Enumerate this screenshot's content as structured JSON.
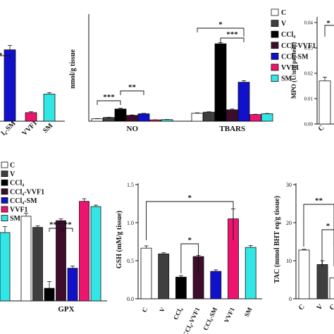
{
  "colors": {
    "C": "#ffffff",
    "V": "#3f3f3f",
    "CCl4": "#000000",
    "CCl4-VVF1": "#3d0d2b",
    "CCl4-SM": "#1111cc",
    "VVF1": "#ef1370",
    "SM": "#33e6e6"
  },
  "chart_data": [
    {
      "id": "p1",
      "type": "bar",
      "partial": true,
      "xlabel": "",
      "ylabel": "",
      "x_tick_labels": [
        "l₄-SM",
        "VVF1",
        "SM"
      ],
      "bars": [
        {
          "group": "CCl4-SM",
          "value": 1000,
          "error": 60
        },
        {
          "group": "VVF1",
          "value": 120,
          "error": 12
        },
        {
          "group": "SM",
          "value": 380,
          "error": 20
        }
      ],
      "ylim": [
        0,
        1500
      ],
      "annotations": [
        "*"
      ]
    },
    {
      "id": "p2",
      "type": "bar",
      "title": "",
      "ylabel": "nmol/g tissue",
      "ylim": [
        0,
        1700
      ],
      "categories": [
        "NO",
        "TBARS"
      ],
      "series": [
        {
          "name": "C",
          "values": [
            45,
            150
          ],
          "errors": [
            4,
            8
          ]
        },
        {
          "name": "V",
          "values": [
            70,
            170
          ],
          "errors": [
            5,
            8
          ]
        },
        {
          "name": "CCl₄",
          "values": [
            230,
            1460
          ],
          "errors": [
            14,
            22
          ]
        },
        {
          "name": "CCl₄-VVF1",
          "values": [
            110,
            215
          ],
          "errors": [
            8,
            14
          ]
        },
        {
          "name": "CCl₄-SM",
          "values": [
            140,
            735
          ],
          "errors": [
            8,
            28
          ]
        },
        {
          "name": "VVF1",
          "values": [
            25,
            125
          ],
          "errors": [
            3,
            6
          ]
        },
        {
          "name": "SM",
          "values": [
            30,
            140
          ],
          "errors": [
            3,
            6
          ]
        }
      ],
      "brackets": [
        {
          "category": 0,
          "from": 0,
          "to": 2,
          "label": "***",
          "level": 0
        },
        {
          "category": 0,
          "from": 2,
          "to": 4,
          "label": "**",
          "level": 1
        },
        {
          "category": 1,
          "from": 2,
          "to": 4,
          "label": "***",
          "level": 0
        },
        {
          "category": 1,
          "from": 0,
          "to": 4,
          "label": "*",
          "level": 1
        }
      ]
    },
    {
      "id": "p3",
      "type": "bar",
      "partial": true,
      "ylabel": "MPO (U/mg protein)",
      "ylim": [
        0,
        0.04
      ],
      "yticks": [
        "0.00",
        "0.01",
        "0.02",
        "0.03",
        "0.04"
      ],
      "x_tick_labels": [
        "C"
      ],
      "bars": [
        {
          "group": "C",
          "value": 0.017,
          "error": 0.0015
        }
      ],
      "annotations": [
        "*"
      ]
    },
    {
      "id": "p4",
      "type": "bar",
      "partial": true,
      "xlabel": "GPX",
      "ylim": [
        0,
        6.5
      ],
      "series": [
        {
          "name": "C",
          "value": 5.7,
          "error": 0.2
        },
        {
          "name": "V",
          "value": 4.95,
          "error": 0.1
        },
        {
          "name": "CCl₄",
          "value": 0.85,
          "error": 0.45
        },
        {
          "name": "CCl₄-VVF1",
          "value": 5.4,
          "error": 0.12
        },
        {
          "name": "CCl₄-SM",
          "value": 2.2,
          "error": 0.15
        },
        {
          "name": "VVF1",
          "value": 6.7,
          "error": 0.18
        },
        {
          "name": "SM",
          "value": 6.35,
          "error": 0.1
        }
      ],
      "partial_left_bar": {
        "group": "SM",
        "value": 4.6,
        "error": 0.4
      },
      "brackets": [
        {
          "from": 2,
          "to": 3,
          "label": "***"
        },
        {
          "from": 3,
          "to": 4,
          "label": "**"
        }
      ]
    },
    {
      "id": "p5",
      "type": "bar",
      "ylabel": "GSH (mM/g tissue)",
      "ylim": [
        0,
        1.5
      ],
      "yticks": [
        "0.0",
        "0.5",
        "1.0",
        "1.5"
      ],
      "categories": [
        "C",
        "V",
        "CCl₄",
        "CCl₄-VVF1",
        "CCl₄-SM",
        "VVF1",
        "SM"
      ],
      "values": [
        0.665,
        0.59,
        0.285,
        0.555,
        0.36,
        1.05,
        0.675
      ],
      "errors": [
        0.03,
        0.015,
        0.02,
        0.015,
        0.02,
        0.13,
        0.025
      ],
      "brackets": [
        {
          "from": 0,
          "to": 5,
          "label": "*"
        },
        {
          "from": 2,
          "to": 3,
          "label": "*"
        }
      ]
    },
    {
      "id": "p6",
      "type": "bar",
      "partial": true,
      "ylabel": "TAC (mmol BHT eq/g tissue)",
      "ylim": [
        0,
        30
      ],
      "yticks": [
        "0",
        "10",
        "20",
        "30"
      ],
      "categories": [
        "C",
        "V",
        "C"
      ],
      "values": [
        12.8,
        9.0,
        5.5
      ],
      "errors": [
        0.2,
        1.0,
        0
      ],
      "brackets": [
        {
          "from": 0,
          "to": 2,
          "label": "**"
        },
        {
          "from": 1,
          "to": 2,
          "label": "*"
        }
      ]
    }
  ],
  "legends": {
    "top": [
      "C",
      "V",
      "CCl₄",
      "CCl₄-VVF1",
      "CCl₄-SM",
      "VVF1",
      "SM"
    ],
    "bottom": [
      "C",
      "V",
      "CCl₄",
      "CCl₄-VVF1",
      "CCl₄-SM",
      "VVF1",
      "SM"
    ]
  }
}
